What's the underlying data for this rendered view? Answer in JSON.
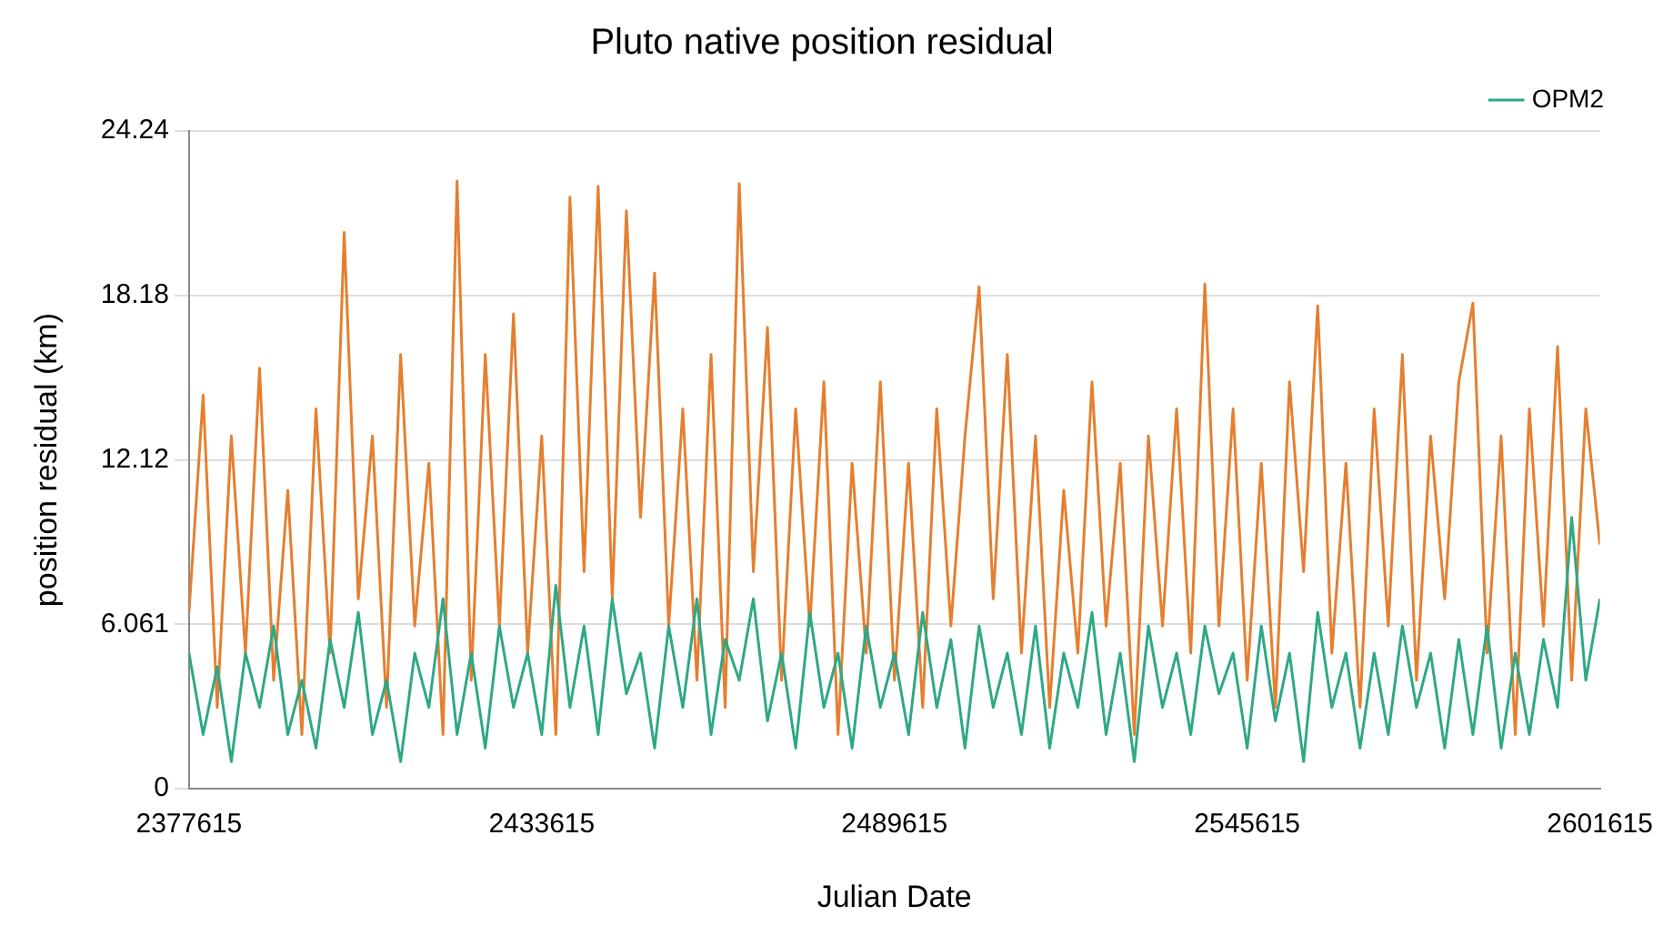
{
  "chart_data": {
    "type": "line",
    "title": "Pluto native position residual",
    "xlabel": "Julian Date",
    "ylabel": "position residual (km)",
    "x": [
      2377615,
      2379855,
      2382095,
      2384335,
      2386575,
      2388815,
      2391055,
      2393295,
      2395535,
      2397775,
      2400015,
      2402255,
      2404495,
      2406735,
      2408975,
      2411215,
      2413455,
      2415695,
      2417935,
      2420175,
      2422415,
      2424655,
      2426895,
      2429135,
      2431375,
      2433615,
      2435855,
      2438095,
      2440335,
      2442575,
      2444815,
      2447055,
      2449295,
      2451535,
      2453775,
      2456015,
      2458255,
      2460495,
      2462735,
      2464975,
      2467215,
      2469455,
      2471695,
      2473935,
      2476175,
      2478415,
      2480655,
      2482895,
      2485135,
      2487375,
      2489615,
      2491855,
      2494095,
      2496335,
      2498575,
      2500815,
      2503055,
      2505295,
      2507535,
      2509775,
      2512015,
      2514255,
      2516495,
      2518735,
      2520975,
      2523215,
      2525455,
      2527695,
      2529935,
      2532175,
      2534415,
      2536655,
      2538895,
      2541135,
      2543375,
      2545615,
      2547855,
      2550095,
      2552335,
      2554575,
      2556815,
      2559055,
      2561295,
      2563535,
      2565775,
      2568015,
      2570255,
      2572495,
      2574735,
      2576975,
      2579215,
      2581455,
      2583695,
      2585935,
      2588175,
      2590415,
      2592655,
      2594895,
      2597135,
      2599375,
      2601615
    ],
    "series": [
      {
        "name": "OPM2",
        "color": "#2fa885",
        "values": [
          5,
          2,
          4.5,
          1,
          5,
          3,
          6,
          2,
          4,
          1.5,
          5.5,
          3,
          6.5,
          2,
          4,
          1,
          5,
          3,
          7,
          2,
          5,
          1.5,
          6,
          3,
          5,
          2,
          7.5,
          3,
          6,
          2,
          7,
          3.5,
          5,
          1.5,
          6,
          3,
          7,
          2,
          5.5,
          4,
          7,
          2.5,
          5,
          1.5,
          6.5,
          3,
          5,
          1.5,
          6,
          3,
          5,
          2,
          6.5,
          3,
          5.5,
          1.5,
          6,
          3,
          5,
          2,
          6,
          1.5,
          5,
          3,
          6.5,
          2,
          5,
          1,
          6,
          3,
          5,
          2,
          6,
          3.5,
          5,
          1.5,
          6,
          2.5,
          5,
          1,
          6.5,
          3,
          5,
          1.5,
          5,
          2,
          6,
          3,
          5,
          1.5,
          5.5,
          2,
          6,
          1.5,
          5,
          2,
          5.5,
          3,
          10,
          4,
          7
        ]
      },
      {
        "color": "#e57f2f",
        "values": [
          6.5,
          14.5,
          3,
          13,
          5,
          15.5,
          4,
          11,
          2,
          14,
          5,
          20.5,
          7,
          13,
          3,
          16,
          6,
          12,
          2,
          22.4,
          4,
          16,
          6,
          17.5,
          5,
          13,
          2,
          21.8,
          8,
          22.2,
          7,
          21.3,
          10,
          19,
          6,
          14,
          4,
          16,
          3,
          22.3,
          8,
          17,
          4,
          14,
          6,
          15,
          2,
          12,
          5,
          15,
          4,
          12,
          3,
          14,
          6,
          13,
          18.5,
          7,
          16,
          5,
          13,
          3,
          11,
          5,
          15,
          6,
          12,
          2,
          13,
          6,
          14,
          5,
          18.6,
          6,
          14,
          4,
          12,
          3,
          15,
          8,
          17.8,
          5,
          12,
          3,
          14,
          6,
          16,
          4,
          13,
          7,
          15,
          17.9,
          5,
          13,
          2,
          14,
          6,
          16.3,
          4,
          14,
          9
        ]
      }
    ],
    "xlim": [
      2377615,
      2601615
    ],
    "xticks": [
      2377615,
      2433615,
      2489615,
      2545615,
      2601615
    ],
    "ylim": [
      0,
      24.24
    ],
    "yticks": [
      0,
      6.061,
      12.12,
      18.18,
      24.24
    ],
    "grid": "y",
    "legend": "top right",
    "marker": "none",
    "line_style": "solid"
  }
}
